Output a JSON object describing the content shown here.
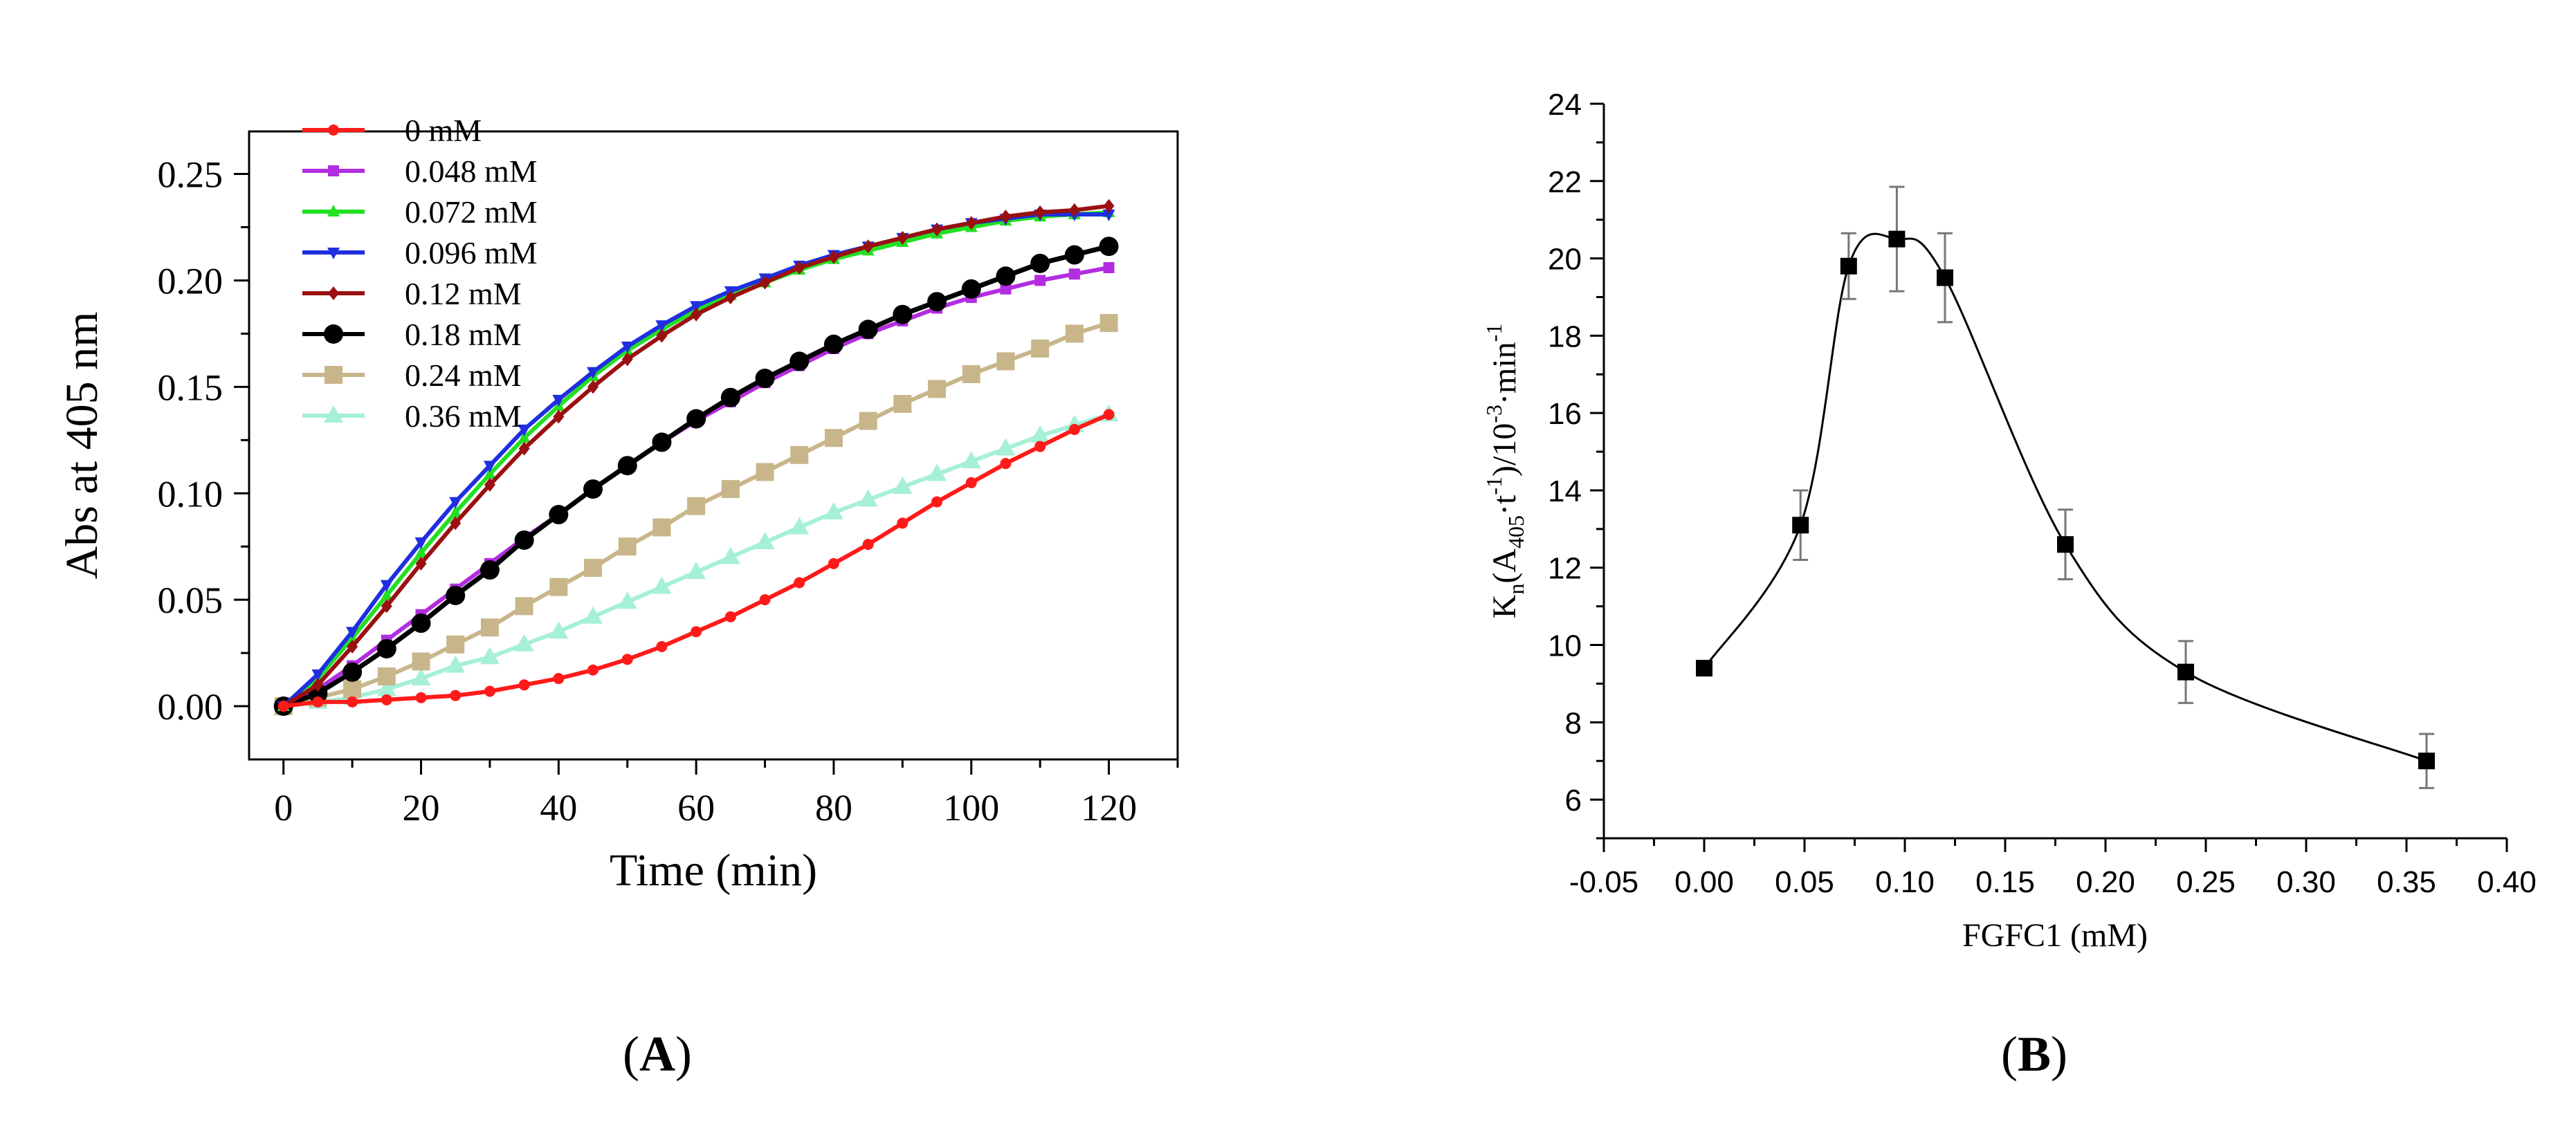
{
  "panel_labels": {
    "a": "A",
    "b": "B"
  },
  "chart_data": [
    {
      "type": "line",
      "panel": "A",
      "title": "",
      "xlabel": "Time (min)",
      "ylabel": "Abs at 405 nm",
      "xlim": [
        -5,
        130
      ],
      "ylim": [
        -0.025,
        0.27
      ],
      "xticks": [
        0,
        20,
        40,
        60,
        80,
        100,
        120
      ],
      "xtick_labels": [
        "0",
        "20",
        "40",
        "60",
        "80",
        "100",
        "120"
      ],
      "yticks": [
        0.0,
        0.05,
        0.1,
        0.15,
        0.2,
        0.25
      ],
      "ytick_labels": [
        "0.00",
        "0.05",
        "0.10",
        "0.15",
        "0.20",
        "0.25"
      ],
      "grid": false,
      "legend_position": "top-left",
      "x": [
        0,
        5,
        10,
        15,
        20,
        25,
        30,
        35,
        40,
        45,
        50,
        55,
        60,
        65,
        70,
        75,
        80,
        85,
        90,
        95,
        100,
        105,
        110,
        115,
        120
      ],
      "series": [
        {
          "name": "0 mM",
          "color": "#ff1a1a",
          "marker": "circle-small",
          "values": [
            0.0,
            0.002,
            0.002,
            0.003,
            0.004,
            0.005,
            0.007,
            0.01,
            0.013,
            0.017,
            0.022,
            0.028,
            0.035,
            0.042,
            0.05,
            0.058,
            0.067,
            0.076,
            0.086,
            0.096,
            0.105,
            0.114,
            0.122,
            0.13,
            0.137
          ]
        },
        {
          "name": "0.048 mM",
          "color": "#b32de0",
          "marker": "square",
          "values": [
            0.0,
            0.008,
            0.019,
            0.031,
            0.043,
            0.055,
            0.067,
            0.079,
            0.09,
            0.102,
            0.113,
            0.124,
            0.134,
            0.143,
            0.152,
            0.16,
            0.168,
            0.175,
            0.181,
            0.187,
            0.192,
            0.196,
            0.2,
            0.203,
            0.206
          ]
        },
        {
          "name": "0.072 mM",
          "color": "#22e022",
          "marker": "triangle-up",
          "values": [
            0.0,
            0.013,
            0.032,
            0.052,
            0.072,
            0.091,
            0.109,
            0.126,
            0.141,
            0.155,
            0.167,
            0.177,
            0.186,
            0.193,
            0.199,
            0.205,
            0.21,
            0.214,
            0.218,
            0.222,
            0.225,
            0.228,
            0.23,
            0.231,
            0.232
          ]
        },
        {
          "name": "0.096 mM",
          "color": "#1f2fe0",
          "marker": "triangle-down",
          "values": [
            0.0,
            0.015,
            0.035,
            0.057,
            0.077,
            0.096,
            0.113,
            0.13,
            0.144,
            0.157,
            0.169,
            0.179,
            0.188,
            0.195,
            0.201,
            0.207,
            0.212,
            0.216,
            0.22,
            0.224,
            0.227,
            0.229,
            0.231,
            0.231,
            0.231
          ]
        },
        {
          "name": "0.12 mM",
          "color": "#9a1010",
          "marker": "diamond",
          "values": [
            0.0,
            0.01,
            0.028,
            0.047,
            0.067,
            0.086,
            0.104,
            0.121,
            0.136,
            0.15,
            0.163,
            0.174,
            0.184,
            0.192,
            0.199,
            0.206,
            0.211,
            0.216,
            0.22,
            0.224,
            0.227,
            0.23,
            0.232,
            0.233,
            0.235
          ]
        },
        {
          "name": "0.18 mM",
          "color": "#000000",
          "marker": "circle-large",
          "values": [
            0.0,
            0.006,
            0.016,
            0.027,
            0.039,
            0.052,
            0.064,
            0.078,
            0.09,
            0.102,
            0.113,
            0.124,
            0.135,
            0.145,
            0.154,
            0.162,
            0.17,
            0.177,
            0.184,
            0.19,
            0.196,
            0.202,
            0.208,
            0.212,
            0.216
          ]
        },
        {
          "name": "0.24 mM",
          "color": "#c8b68a",
          "marker": "square-large",
          "values": [
            0.0,
            0.004,
            0.008,
            0.014,
            0.021,
            0.029,
            0.037,
            0.047,
            0.056,
            0.065,
            0.075,
            0.084,
            0.094,
            0.102,
            0.11,
            0.118,
            0.126,
            0.134,
            0.142,
            0.149,
            0.156,
            0.162,
            0.168,
            0.175,
            0.18
          ]
        },
        {
          "name": "0.36 mM",
          "color": "#a6f0d6",
          "marker": "triangle-large",
          "values": [
            0.0,
            0.002,
            0.004,
            0.008,
            0.013,
            0.019,
            0.023,
            0.029,
            0.035,
            0.042,
            0.049,
            0.056,
            0.063,
            0.07,
            0.077,
            0.084,
            0.091,
            0.097,
            0.103,
            0.109,
            0.115,
            0.121,
            0.127,
            0.132,
            0.137
          ]
        }
      ]
    },
    {
      "type": "scatter",
      "panel": "B",
      "title": "",
      "xlabel": "FGFC1 (mM)",
      "ylabel_parts": [
        "K",
        "n",
        "(A",
        "405",
        "·t",
        "-1",
        ")/10",
        "-3",
        "·min",
        "-1"
      ],
      "xlim": [
        -0.05,
        0.4
      ],
      "ylim": [
        5,
        24
      ],
      "xticks": [
        -0.05,
        0.0,
        0.05,
        0.1,
        0.15,
        0.2,
        0.25,
        0.3,
        0.35,
        0.4
      ],
      "xtick_labels": [
        "-0.05",
        "0.00",
        "0.05",
        "0.10",
        "0.15",
        "0.20",
        "0.25",
        "0.30",
        "0.35",
        "0.40"
      ],
      "yticks": [
        6,
        8,
        10,
        12,
        14,
        16,
        18,
        20,
        22,
        24
      ],
      "ytick_labels": [
        "6",
        "8",
        "10",
        "12",
        "14",
        "16",
        "18",
        "20",
        "22",
        "24"
      ],
      "grid": false,
      "fit_line": "smooth spline",
      "x": [
        0.0,
        0.048,
        0.072,
        0.096,
        0.12,
        0.18,
        0.24,
        0.36
      ],
      "y": [
        9.4,
        13.1,
        19.8,
        20.5,
        19.5,
        12.6,
        9.3,
        7.0
      ],
      "error": [
        0.0,
        0.9,
        0.85,
        1.35,
        1.15,
        0.9,
        0.8,
        0.7
      ]
    }
  ]
}
